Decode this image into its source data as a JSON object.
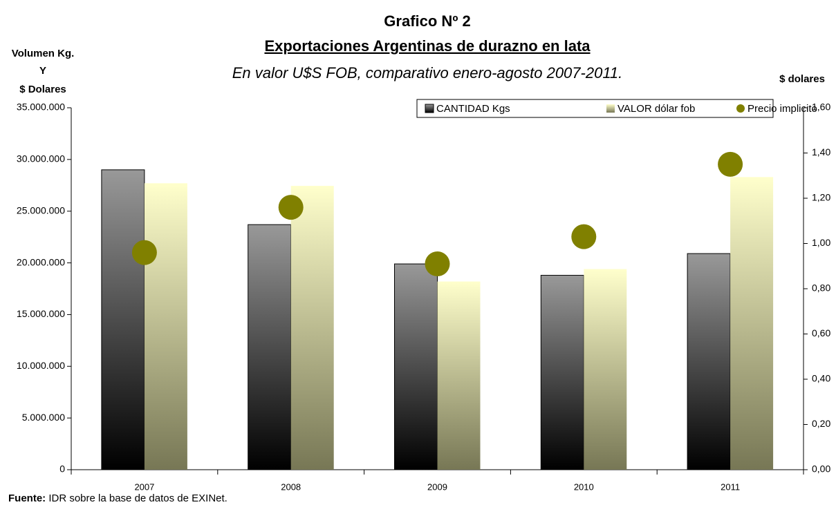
{
  "chart_data": {
    "type": "bar",
    "title": "Grafico Nº 2",
    "subtitle": "Exportaciones Argentinas de durazno en lata",
    "subtitle2": "En valor U$S FOB, comparativo enero-agosto 2007-2011.",
    "y_label": [
      "Volumen Kg.",
      "Y",
      "$ Dolares"
    ],
    "y2_label": "$ dolares",
    "categories": [
      "2007",
      "2008",
      "2009",
      "2010",
      "2011"
    ],
    "series": [
      {
        "name": "CANTIDAD Kgs",
        "color": "#999999",
        "gradient": [
          "#999999",
          "#000000"
        ],
        "values": [
          29000000,
          23700000,
          19900000,
          18800000,
          20900000
        ]
      },
      {
        "name": "VALOR dólar fob",
        "color": "#ffffcc",
        "gradient": [
          "#ffffcc",
          "#777755"
        ],
        "values": [
          27700000,
          27450000,
          18200000,
          19400000,
          28300000
        ]
      },
      {
        "name": "Precio implicito",
        "color": "#808000",
        "type": "scatter",
        "axis": "y2",
        "values": [
          0.96,
          1.16,
          0.91,
          1.03,
          1.35
        ]
      }
    ],
    "ylim": [
      0,
      35000000
    ],
    "yticks": [
      0,
      {
        "value": 5000000,
        "label": "5.000.000"
      },
      {
        "value": 10000000,
        "label": "10.000.000"
      },
      {
        "value": 15000000,
        "label": "15.000.000"
      },
      {
        "value": 20000000,
        "label": "20.000.000"
      },
      {
        "value": 25000000,
        "label": "25.000.000"
      },
      {
        "value": 30000000,
        "label": "30.000.000"
      },
      {
        "value": 35000000,
        "label": "35.000.000"
      }
    ],
    "y2lim": [
      0,
      1.6
    ],
    "y2ticks": [
      {
        "value": 0,
        "label": "0,00"
      },
      {
        "value": 0.2,
        "label": "0,20"
      },
      {
        "value": 0.4,
        "label": "0,40"
      },
      {
        "value": 0.6,
        "label": "0,60"
      },
      {
        "value": 0.8,
        "label": "0,80"
      },
      {
        "value": 1.0,
        "label": "1,00"
      },
      {
        "value": 1.2,
        "label": "1,20"
      },
      {
        "value": 1.4,
        "label": "1,40"
      },
      {
        "value": 1.6,
        "label": "1,60"
      }
    ],
    "legend": "top-right",
    "grid": false,
    "source": {
      "label": "Fuente:",
      "text": "IDR sobre la base de datos de EXINet."
    }
  }
}
